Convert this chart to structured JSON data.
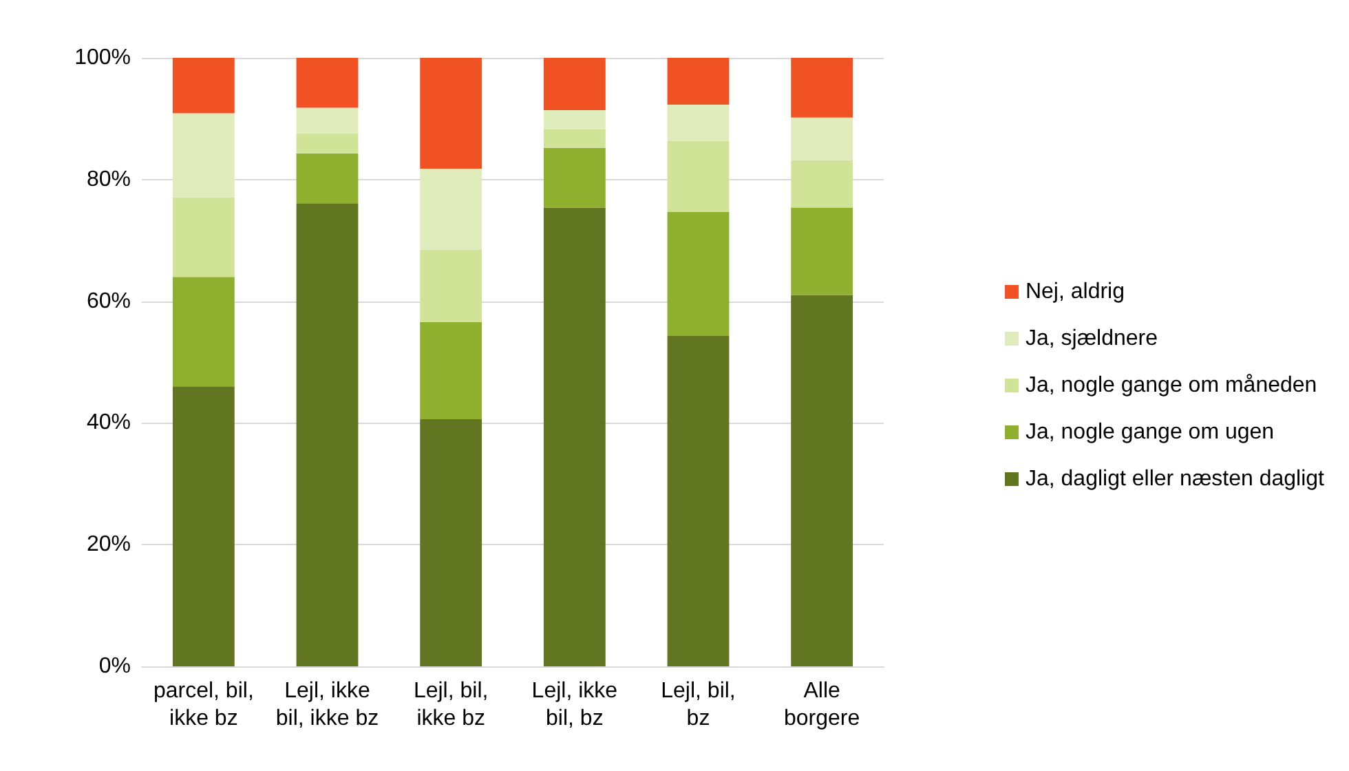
{
  "chart_data": {
    "type": "bar",
    "stacked": true,
    "categories": [
      "parcel, bil,\nikke bz",
      "Lejl, ikke\nbil, ikke bz",
      "Lejl, bil,\nikke bz",
      "Lejl, ikke\nbil, bz",
      "Lejl, bil,\nbz",
      "Alle\nborgere"
    ],
    "series": [
      {
        "name": "Ja, dagligt eller næsten dagligt",
        "color": "#627520",
        "values": [
          46,
          76.1,
          40.6,
          75.4,
          54.3,
          61
        ]
      },
      {
        "name": "Ja, nogle gange om ugen",
        "color": "#8fb02e",
        "values": [
          18,
          8.2,
          16,
          9.8,
          20.4,
          14.4
        ]
      },
      {
        "name": "Ja, nogle gange om måneden",
        "color": "#d1e396",
        "values": [
          13.1,
          3.3,
          11.9,
          3.1,
          11.6,
          7.8
        ]
      },
      {
        "name": "Ja, sjældnere",
        "color": "#e1ecbc",
        "values": [
          13.8,
          4.2,
          13.3,
          3.1,
          6,
          7
        ]
      },
      {
        "name": "Nej, aldrig",
        "color": "#f05224",
        "values": [
          9.1,
          8.2,
          18.2,
          8.6,
          7.7,
          9.8
        ]
      }
    ],
    "ylim": [
      0,
      100
    ],
    "yticks": [
      {
        "value": 0,
        "label": "0%"
      },
      {
        "value": 20,
        "label": "20%"
      },
      {
        "value": 40,
        "label": "40%"
      },
      {
        "value": 60,
        "label": "60%"
      },
      {
        "value": 80,
        "label": "80%"
      },
      {
        "value": 100,
        "label": "100%"
      }
    ],
    "grid": "y",
    "legend": "right"
  }
}
